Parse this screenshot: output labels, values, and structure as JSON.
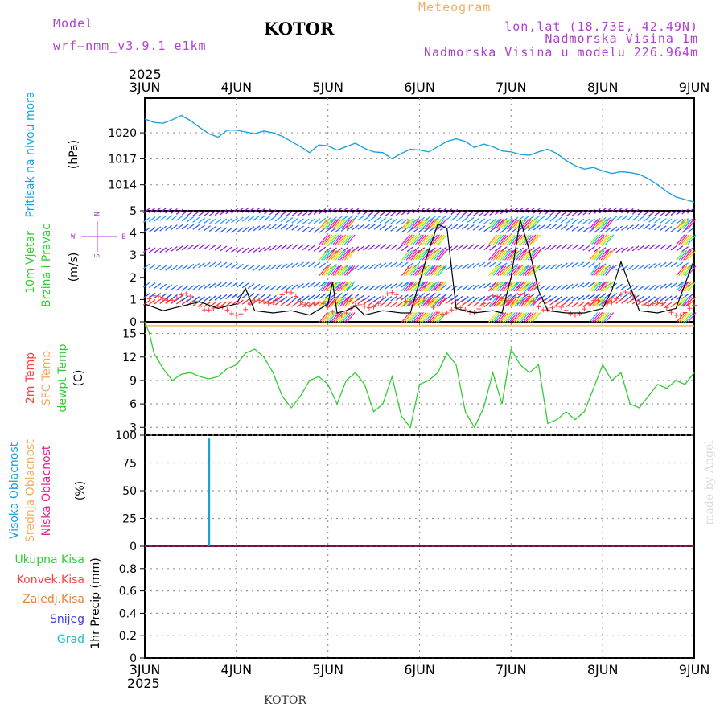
{
  "header": {
    "model_label": "Model",
    "model_name": "wrf–nmm_v3.9.1 e1km",
    "station": "KOTOR",
    "product": "Meteogram",
    "coords": "lon,lat (18.73E, 42.49N)",
    "elevation": "Nadmorska Visina 1m",
    "model_elevation": "Nadmorska Visina u modelu 226.964m",
    "footer_station": "KOTOR",
    "credit": "made by Angel"
  },
  "time_axis": {
    "year": "2025",
    "labels": [
      "3JUN",
      "4JUN",
      "5JUN",
      "6JUN",
      "7JUN",
      "8JUN",
      "9JUN"
    ]
  },
  "panels": {
    "pressure": {
      "label": "Pritisak na nivou mora",
      "unit": "(hPa)",
      "ticks": [
        "1020",
        "1017",
        "1014"
      ]
    },
    "wind": {
      "label_line1": "10m Vjetar",
      "label_line2": "Brzina i Pravac",
      "unit": "(m/s)",
      "ticks": [
        "5",
        "4",
        "3",
        "2",
        "1",
        "0"
      ],
      "compass_n": "N",
      "compass_w": "W",
      "compass_e": "E",
      "compass_s": "S"
    },
    "temperature": {
      "label_2m": "2m Temp",
      "label_sfc": "SFC Temp",
      "label_dewpt": "dewpt Temp",
      "unit": "(C)",
      "ticks": [
        "15",
        "12",
        "9",
        "6",
        "3"
      ]
    },
    "cloud": {
      "label_high": "Visoka Oblacnost",
      "label_mid": "Srednja Oblacnost",
      "label_low": "Niska Oblacnost",
      "unit": "(%)",
      "ticks": [
        "100",
        "75",
        "50",
        "25",
        "0"
      ]
    },
    "precip": {
      "legend": [
        "Ukupna Kisa",
        "Konvek.Kisa",
        "Zaledj.Kisa",
        "Snijeg",
        "Grad"
      ],
      "unit": "1hr Precip (mm)",
      "ticks": [
        "0.8",
        "0.6",
        "0.4",
        "0.2",
        "0"
      ]
    }
  },
  "colors": {
    "pressure": "#1ea0e0",
    "dewpoint": "#32cd32",
    "sfc_temp": "#f0b060",
    "high_cloud": "#1ea0d0",
    "wind_speed": "#000000",
    "gust": "#ff4040",
    "header_purple": "#b040d0",
    "header_orange": "#f0b060"
  },
  "chart_data": [
    {
      "type": "line",
      "ylabel": "(hPa)",
      "ylim": [
        1011,
        1024
      ],
      "x": [
        0,
        0.1,
        0.2,
        0.3,
        0.4,
        0.5,
        0.6,
        0.7,
        0.8,
        0.9,
        1.0,
        1.1,
        1.2,
        1.3,
        1.4,
        1.5,
        1.6,
        1.7,
        1.8,
        1.9,
        2.0,
        2.1,
        2.2,
        2.3,
        2.4,
        2.5,
        2.6,
        2.7,
        2.8,
        2.9,
        3.0,
        3.1,
        3.2,
        3.3,
        3.4,
        3.5,
        3.6,
        3.7,
        3.8,
        3.9,
        4.0,
        4.1,
        4.2,
        4.3,
        4.4,
        4.5,
        4.6,
        4.7,
        4.8,
        4.9,
        5.0,
        5.1,
        5.2,
        5.3,
        5.4,
        5.5,
        5.6,
        5.7,
        5.8,
        5.9,
        6.0
      ],
      "series": [
        {
          "values": [
            1021.6,
            1021.2,
            1021.1,
            1021.5,
            1022.0,
            1021.4,
            1020.6,
            1019.9,
            1019.5,
            1020.3,
            1020.3,
            1020.1,
            1019.9,
            1020.2,
            1020.0,
            1019.6,
            1019.0,
            1018.4,
            1017.7,
            1018.6,
            1018.5,
            1018.0,
            1018.4,
            1018.8,
            1018.2,
            1017.8,
            1017.7,
            1017.0,
            1017.6,
            1018.1,
            1018.0,
            1017.8,
            1018.4,
            1019.0,
            1019.3,
            1019.0,
            1018.3,
            1018.7,
            1018.4,
            1017.9,
            1017.8,
            1017.5,
            1017.4,
            1017.8,
            1018.1,
            1017.6,
            1016.8,
            1016.2,
            1015.8,
            1016.0,
            1015.6,
            1015.3,
            1015.5,
            1015.4,
            1015.2,
            1014.7,
            1014.0,
            1013.2,
            1012.6,
            1012.3,
            1012.0
          ]
        }
      ]
    },
    {
      "type": "line",
      "ylabel": "(m/s)",
      "ylim": [
        0,
        5
      ],
      "x": [
        0,
        0.2,
        0.4,
        0.6,
        0.8,
        1.0,
        1.1,
        1.2,
        1.4,
        1.6,
        1.8,
        2.0,
        2.05,
        2.1,
        2.2,
        2.3,
        2.4,
        2.6,
        2.8,
        2.9,
        3.0,
        3.1,
        3.2,
        3.3,
        3.4,
        3.6,
        3.8,
        3.9,
        4.0,
        4.1,
        4.2,
        4.3,
        4.4,
        4.6,
        4.8,
        5.0,
        5.1,
        5.2,
        5.4,
        5.6,
        5.8,
        6.0
      ],
      "series": [
        {
          "values": [
            0.8,
            0.5,
            0.7,
            0.9,
            0.6,
            0.8,
            1.5,
            0.5,
            0.4,
            0.5,
            0.3,
            0.8,
            1.8,
            0.4,
            0.5,
            0.7,
            0.3,
            0.5,
            0.4,
            0.4,
            1.8,
            3.2,
            4.4,
            4.2,
            0.6,
            0.4,
            0.5,
            0.4,
            2.0,
            4.6,
            3.2,
            1.4,
            0.5,
            0.4,
            0.4,
            0.6,
            1.4,
            2.7,
            0.5,
            0.4,
            0.6,
            2.8
          ]
        }
      ]
    },
    {
      "type": "line",
      "ylabel": "(C)",
      "ylim": [
        2,
        16.5
      ],
      "x": [
        0,
        0.05,
        0.1,
        0.15,
        0.2,
        0.3,
        0.4,
        0.5,
        0.6,
        0.7,
        0.8,
        0.9,
        1.0,
        1.1,
        1.2,
        1.3,
        1.4,
        1.5,
        1.6,
        1.7,
        1.8,
        1.9,
        2.0,
        2.1,
        2.2,
        2.3,
        2.4,
        2.5,
        2.6,
        2.7,
        2.8,
        2.9,
        3.0,
        3.1,
        3.2,
        3.3,
        3.4,
        3.5,
        3.6,
        3.7,
        3.8,
        3.9,
        4.0,
        4.1,
        4.2,
        4.3,
        4.4,
        4.5,
        4.6,
        4.7,
        4.8,
        4.9,
        5.0,
        5.1,
        5.2,
        5.3,
        5.4,
        5.5,
        5.6,
        5.7,
        5.8,
        5.9,
        6.0
      ],
      "series": [
        {
          "values": [
            16.5,
            15.0,
            12.5,
            11.5,
            10.5,
            9.0,
            9.8,
            10.0,
            9.5,
            9.2,
            9.5,
            10.5,
            11.0,
            12.5,
            13.0,
            12.0,
            10.0,
            7.0,
            5.5,
            7.0,
            9.0,
            9.5,
            8.5,
            6.0,
            9.0,
            10.0,
            8.5,
            5.0,
            6.0,
            9.5,
            4.5,
            3.0,
            8.5,
            9.0,
            10.0,
            12.5,
            11.0,
            5.0,
            3.0,
            5.5,
            10.0,
            6.0,
            13.0,
            11.0,
            10.0,
            11.0,
            3.5,
            4.0,
            5.0,
            4.0,
            5.0,
            8.0,
            11.0,
            9.0,
            10.0,
            6.0,
            5.5,
            7.0,
            8.5,
            8.0,
            9.0,
            8.5,
            10.0
          ]
        },
        {
          "values": [
            16.0,
            16.0,
            16.0,
            16.0,
            16.0,
            16.0,
            16.0,
            16.0,
            16.0,
            16.0,
            16.0,
            16.0,
            16.0,
            16.0,
            16.0,
            16.0,
            16.0,
            16.0,
            16.0,
            16.0,
            16.0,
            16.0,
            16.0,
            16.0,
            16.0,
            16.0,
            16.0,
            16.0,
            16.0,
            16.0,
            16.0,
            16.0,
            16.0,
            16.0,
            16.0,
            16.0,
            16.0,
            16.0,
            16.0,
            16.0,
            16.0,
            16.0,
            16.0,
            16.0,
            16.0,
            16.0,
            16.0,
            16.0,
            16.0,
            16.0,
            16.0,
            16.0,
            16.0,
            16.0,
            16.0,
            16.0,
            16.0,
            16.0,
            16.0,
            16.0,
            16.0,
            16.0,
            16.0
          ]
        }
      ]
    },
    {
      "type": "bar",
      "ylabel": "(%)",
      "ylim": [
        0,
        100
      ],
      "x": [
        0.7
      ],
      "values": [
        97
      ]
    },
    {
      "type": "bar",
      "ylabel": "1hr Precip (mm)",
      "ylim": [
        0,
        1.0
      ],
      "x": [],
      "values": []
    }
  ]
}
